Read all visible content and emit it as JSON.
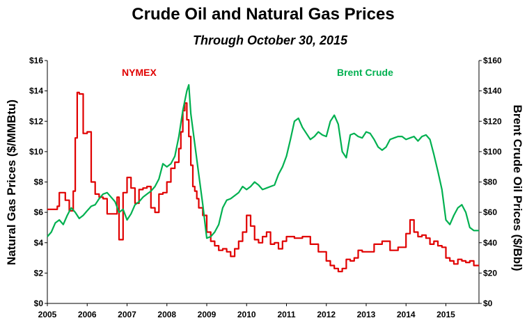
{
  "chart_data": {
    "type": "line",
    "title": "Crude Oil and Natural Gas Prices",
    "subtitle": "Through October 30, 2015",
    "xlabel": "",
    "xlim": [
      2005,
      2015.83
    ],
    "x_ticks": [
      "2005",
      "2006",
      "2007",
      "2008",
      "2009",
      "2010",
      "2011",
      "2012",
      "2013",
      "2014",
      "2015"
    ],
    "y_left": {
      "label": "Natural Gas Prices ($/MMBtu)",
      "lim": [
        0,
        16
      ],
      "ticks": [
        "$0",
        "$2",
        "$4",
        "$6",
        "$8",
        "$10",
        "$12",
        "$14",
        "$16"
      ]
    },
    "y_right": {
      "label": "Brent Crude Oil Prices ($/Bbl)",
      "lim": [
        0,
        160
      ],
      "ticks": [
        "$0",
        "$20",
        "$40",
        "$60",
        "$80",
        "$100",
        "$120",
        "$140",
        "$160"
      ]
    },
    "grid": false,
    "series": [
      {
        "name": "NYMEX",
        "axis": "left",
        "color": "#e00000",
        "style": "step",
        "x": [
          2005.0,
          2005.25,
          2005.3,
          2005.45,
          2005.55,
          2005.65,
          2005.7,
          2005.75,
          2005.8,
          2005.9,
          2006.0,
          2006.1,
          2006.2,
          2006.3,
          2006.4,
          2006.5,
          2006.6,
          2006.75,
          2006.8,
          2006.9,
          2007.0,
          2007.1,
          2007.2,
          2007.3,
          2007.4,
          2007.5,
          2007.6,
          2007.7,
          2007.8,
          2007.9,
          2008.0,
          2008.1,
          2008.2,
          2008.3,
          2008.35,
          2008.4,
          2008.45,
          2008.5,
          2008.55,
          2008.6,
          2008.65,
          2008.7,
          2008.75,
          2008.8,
          2008.9,
          2009.0,
          2009.1,
          2009.2,
          2009.3,
          2009.4,
          2009.5,
          2009.6,
          2009.7,
          2009.8,
          2009.9,
          2010.0,
          2010.1,
          2010.2,
          2010.3,
          2010.4,
          2010.5,
          2010.6,
          2010.7,
          2010.8,
          2010.9,
          2011.0,
          2011.2,
          2011.4,
          2011.6,
          2011.8,
          2012.0,
          2012.1,
          2012.2,
          2012.3,
          2012.4,
          2012.5,
          2012.6,
          2012.7,
          2012.8,
          2012.9,
          2013.0,
          2013.2,
          2013.4,
          2013.6,
          2013.8,
          2014.0,
          2014.1,
          2014.2,
          2014.3,
          2014.4,
          2014.5,
          2014.6,
          2014.7,
          2014.8,
          2014.9,
          2015.0,
          2015.1,
          2015.2,
          2015.3,
          2015.4,
          2015.5,
          2015.6,
          2015.7,
          2015.83
        ],
        "values": [
          6.2,
          6.4,
          7.3,
          6.8,
          6.1,
          7.4,
          10.9,
          13.9,
          13.8,
          11.2,
          11.3,
          8.0,
          7.2,
          7.0,
          6.9,
          5.9,
          5.9,
          7.0,
          4.2,
          7.3,
          8.3,
          7.6,
          6.6,
          7.5,
          7.6,
          7.7,
          6.3,
          6.0,
          7.2,
          7.3,
          8.0,
          8.9,
          9.3,
          10.2,
          11.3,
          12.7,
          13.2,
          12.1,
          11.0,
          9.1,
          7.7,
          7.4,
          6.9,
          6.3,
          5.8,
          4.7,
          4.1,
          3.8,
          3.5,
          3.6,
          3.4,
          3.1,
          3.6,
          4.1,
          4.7,
          5.8,
          5.1,
          4.2,
          4.0,
          4.4,
          4.7,
          3.9,
          4.0,
          3.6,
          4.1,
          4.4,
          4.3,
          4.4,
          3.9,
          3.4,
          2.8,
          2.5,
          2.3,
          2.1,
          2.3,
          2.9,
          2.8,
          3.0,
          3.5,
          3.4,
          3.4,
          3.9,
          4.1,
          3.5,
          3.7,
          4.6,
          5.5,
          4.7,
          4.4,
          4.5,
          4.3,
          3.9,
          4.1,
          3.8,
          3.7,
          3.0,
          2.8,
          2.6,
          2.9,
          2.8,
          2.7,
          2.8,
          2.5,
          2.5
        ]
      },
      {
        "name": "Brent Crude",
        "axis": "right",
        "color": "#00b050",
        "style": "line",
        "x": [
          2005.0,
          2005.1,
          2005.2,
          2005.3,
          2005.4,
          2005.5,
          2005.6,
          2005.7,
          2005.8,
          2005.9,
          2006.0,
          2006.1,
          2006.2,
          2006.3,
          2006.4,
          2006.5,
          2006.6,
          2006.7,
          2006.8,
          2006.9,
          2007.0,
          2007.1,
          2007.2,
          2007.3,
          2007.4,
          2007.5,
          2007.6,
          2007.7,
          2007.8,
          2007.9,
          2008.0,
          2008.1,
          2008.2,
          2008.3,
          2008.4,
          2008.5,
          2008.55,
          2008.6,
          2008.7,
          2008.8,
          2008.9,
          2009.0,
          2009.1,
          2009.2,
          2009.3,
          2009.4,
          2009.5,
          2009.6,
          2009.7,
          2009.8,
          2009.9,
          2010.0,
          2010.1,
          2010.2,
          2010.3,
          2010.4,
          2010.5,
          2010.6,
          2010.7,
          2010.8,
          2010.9,
          2011.0,
          2011.1,
          2011.2,
          2011.3,
          2011.4,
          2011.5,
          2011.6,
          2011.7,
          2011.8,
          2011.9,
          2012.0,
          2012.1,
          2012.2,
          2012.3,
          2012.4,
          2012.5,
          2012.6,
          2012.7,
          2012.8,
          2012.9,
          2013.0,
          2013.1,
          2013.2,
          2013.3,
          2013.4,
          2013.5,
          2013.6,
          2013.7,
          2013.8,
          2013.9,
          2014.0,
          2014.1,
          2014.2,
          2014.3,
          2014.4,
          2014.5,
          2014.6,
          2014.7,
          2014.8,
          2014.9,
          2015.0,
          2015.1,
          2015.2,
          2015.3,
          2015.4,
          2015.5,
          2015.6,
          2015.7,
          2015.83
        ],
        "values": [
          44,
          47,
          53,
          55,
          52,
          58,
          63,
          60,
          56,
          58,
          61,
          64,
          65,
          69,
          72,
          73,
          70,
          67,
          60,
          62,
          55,
          59,
          65,
          67,
          70,
          72,
          74,
          77,
          82,
          92,
          90,
          92,
          97,
          110,
          127,
          140,
          144,
          125,
          105,
          85,
          65,
          43,
          44,
          47,
          52,
          63,
          68,
          69,
          71,
          73,
          77,
          75,
          77,
          80,
          78,
          75,
          76,
          77,
          78,
          85,
          90,
          97,
          108,
          120,
          122,
          116,
          112,
          108,
          110,
          113,
          111,
          110,
          120,
          124,
          118,
          100,
          96,
          111,
          112,
          110,
          109,
          113,
          112,
          108,
          103,
          101,
          103,
          108,
          109,
          110,
          110,
          108,
          109,
          110,
          107,
          110,
          111,
          108,
          98,
          87,
          75,
          55,
          52,
          58,
          63,
          65,
          60,
          50,
          48,
          48
        ]
      }
    ]
  }
}
